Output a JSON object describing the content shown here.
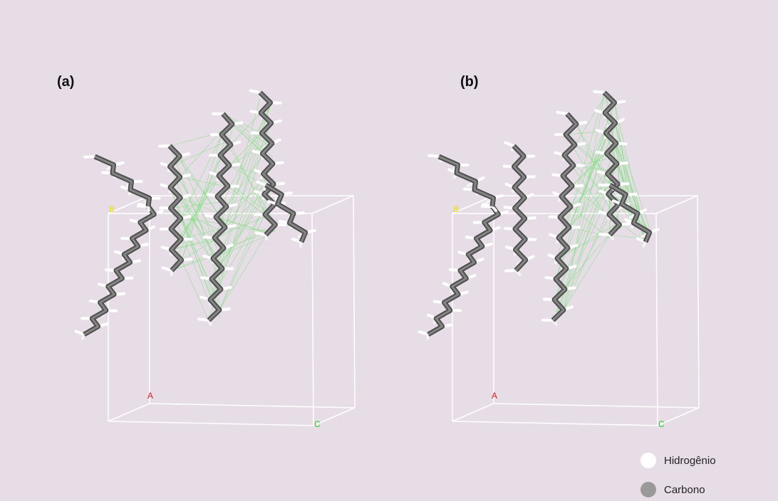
{
  "panels": [
    {
      "label": "(a)",
      "axes": {
        "a": "A",
        "b": "B",
        "c": "C"
      }
    },
    {
      "label": "(b)",
      "axes": {
        "a": "A",
        "b": "B",
        "c": "C"
      }
    }
  ],
  "legend": [
    {
      "label": "Hidrogênio"
    },
    {
      "label": "Carbono"
    }
  ]
}
